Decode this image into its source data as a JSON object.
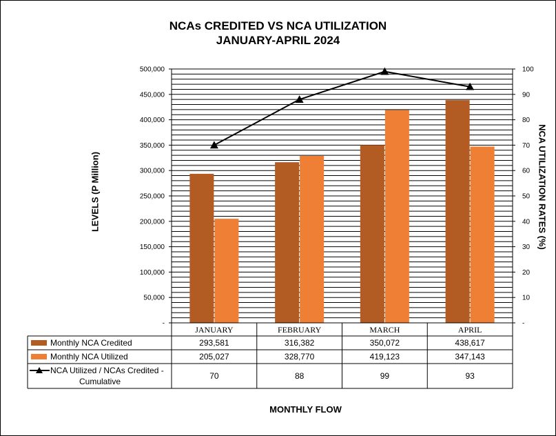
{
  "chart_data": {
    "type": "bar",
    "title": "NCAs CREDITED VS NCA UTILIZATION",
    "subtitle": "JANUARY-APRIL 2024",
    "xlabel": "MONTHLY  FLOW",
    "ylabel": "LEVELS (P Million)",
    "y2label": "NCA UTILIZATION RATES (%)",
    "categories": [
      "JANUARY",
      "FEBRUARY",
      "MARCH",
      "APRIL"
    ],
    "ylim": [
      0,
      500000
    ],
    "y_ticks": [
      "-",
      "50,000",
      "100,000",
      "150,000",
      "200,000",
      "250,000",
      "300,000",
      "350,000",
      "400,000",
      "450,000",
      "500,000"
    ],
    "y2lim": [
      0,
      100
    ],
    "y2_ticks": [
      "-",
      "10",
      "20",
      "30",
      "40",
      "50",
      "60",
      "70",
      "80",
      "90",
      "100"
    ],
    "grid": true,
    "series": [
      {
        "name": "Monthly NCA Credited",
        "type": "bar",
        "axis": "left",
        "color": "#B25B22",
        "values": [
          293581,
          316382,
          350072,
          438617
        ],
        "labels": [
          "293,581",
          "316,382",
          "350,072",
          "438,617"
        ]
      },
      {
        "name": "Monthly NCA Utilized",
        "type": "bar",
        "axis": "left",
        "color": "#EE7F35",
        "values": [
          205027,
          328770,
          419123,
          347143
        ],
        "labels": [
          "205,027",
          "328,770",
          "419,123",
          "347,143"
        ]
      },
      {
        "name_line1": "NCA Utilized / NCAs Credited -",
        "name_line2": "Cumulative",
        "type": "line",
        "axis": "right",
        "color": "#000000",
        "marker": "triangle",
        "values": [
          70,
          88,
          99,
          93
        ],
        "labels": [
          "70",
          "88",
          "99",
          "93"
        ]
      }
    ]
  }
}
